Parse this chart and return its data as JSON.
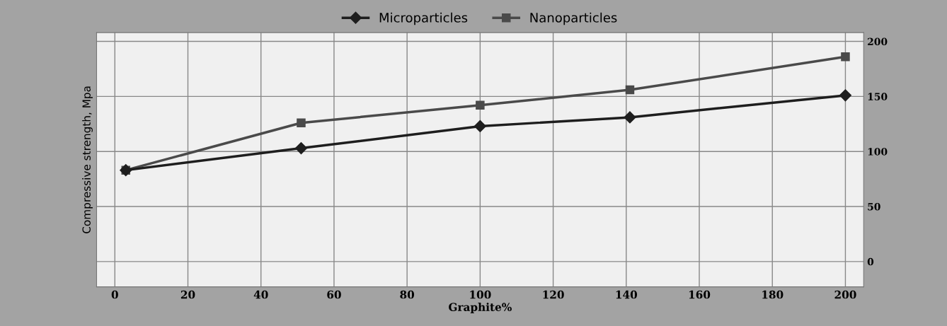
{
  "chart_data": {
    "type": "line",
    "xlabel": "Graphite%",
    "ylabel": "Compressive strength, Mpa",
    "x": [
      3,
      51,
      100,
      141,
      200
    ],
    "series": [
      {
        "name": "Microparticles",
        "color": "#1e1e1e",
        "marker": "diamond",
        "values": [
          83,
          103,
          123,
          131,
          151
        ]
      },
      {
        "name": "Nanoparticles",
        "color": "#4a4a4a",
        "marker": "square",
        "values": [
          83,
          126,
          142,
          156,
          186
        ]
      }
    ],
    "xlim": [
      -5,
      205
    ],
    "xticks": [
      0,
      20,
      40,
      60,
      80,
      100,
      120,
      140,
      160,
      180,
      200
    ],
    "ylim": [
      -23,
      208
    ],
    "yticks": [
      0,
      50,
      100,
      150,
      200
    ],
    "grid": true,
    "legend": "top",
    "line_style": "solid"
  }
}
